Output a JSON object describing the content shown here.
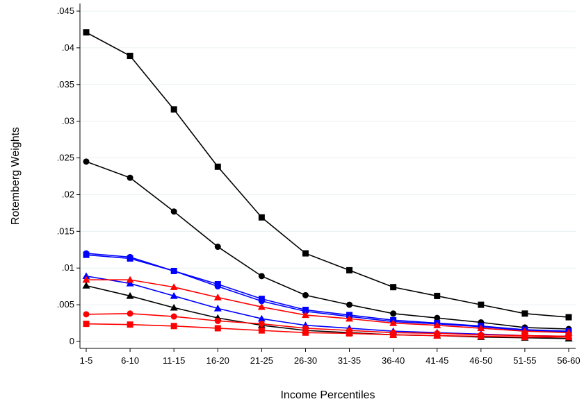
{
  "chart_data": {
    "type": "line",
    "title": "",
    "xlabel": "Income Percentiles",
    "ylabel": "Rotemberg Weights",
    "categories": [
      "1-5",
      "6-10",
      "11-15",
      "16-20",
      "21-25",
      "26-30",
      "31-35",
      "36-40",
      "41-45",
      "46-50",
      "51-55",
      "56-60"
    ],
    "ylim": [
      0,
      0.045
    ],
    "yticks": [
      0,
      0.005,
      0.01,
      0.015,
      0.02,
      0.025,
      0.03,
      0.035,
      0.04,
      0.045
    ],
    "ytick_labels": [
      "0",
      ".005",
      ".01",
      ".015",
      ".02",
      ".025",
      ".03",
      ".035",
      ".04",
      ".045"
    ],
    "grid": true,
    "legend": "none",
    "series": [
      {
        "color": "#000000",
        "marker": "square",
        "values": [
          0.0421,
          0.0389,
          0.0316,
          0.0238,
          0.0169,
          0.012,
          0.0097,
          0.0074,
          0.0062,
          0.005,
          0.0038,
          0.0033
        ]
      },
      {
        "color": "#000000",
        "marker": "circle",
        "values": [
          0.0245,
          0.0223,
          0.0177,
          0.0129,
          0.0089,
          0.0063,
          0.005,
          0.0038,
          0.0032,
          0.0026,
          0.0019,
          0.0017
        ]
      },
      {
        "color": "#0000ff",
        "marker": "circle",
        "values": [
          0.012,
          0.0115,
          0.0096,
          0.0075,
          0.0055,
          0.0041,
          0.0034,
          0.0027,
          0.0024,
          0.002,
          0.0015,
          0.0013
        ]
      },
      {
        "color": "#0000ff",
        "marker": "square",
        "values": [
          0.0118,
          0.0113,
          0.0096,
          0.0078,
          0.0058,
          0.0043,
          0.0036,
          0.0029,
          0.0025,
          0.0021,
          0.0016,
          0.0014
        ]
      },
      {
        "color": "#0000ff",
        "marker": "triangle",
        "values": [
          0.0089,
          0.0079,
          0.0062,
          0.0045,
          0.0031,
          0.0022,
          0.0018,
          0.0014,
          0.0012,
          0.001,
          0.0008,
          0.0007
        ]
      },
      {
        "color": "#ff0000",
        "marker": "triangle",
        "values": [
          0.0084,
          0.0084,
          0.0074,
          0.006,
          0.0047,
          0.0036,
          0.0031,
          0.0025,
          0.0022,
          0.0018,
          0.0014,
          0.0012
        ]
      },
      {
        "color": "#000000",
        "marker": "triangle",
        "values": [
          0.0076,
          0.0062,
          0.0046,
          0.0032,
          0.0022,
          0.0015,
          0.0012,
          0.0009,
          0.0008,
          0.0006,
          0.0005,
          0.0004
        ]
      },
      {
        "color": "#ff0000",
        "marker": "circle",
        "values": [
          0.0037,
          0.0038,
          0.0034,
          0.0028,
          0.0024,
          0.0018,
          0.0015,
          0.0012,
          0.0011,
          0.0009,
          0.0008,
          0.0007
        ]
      },
      {
        "color": "#ff0000",
        "marker": "square",
        "values": [
          0.0024,
          0.0023,
          0.0021,
          0.0018,
          0.0015,
          0.0012,
          0.0011,
          0.0009,
          0.0008,
          0.0007,
          0.0006,
          0.0006
        ]
      }
    ]
  }
}
